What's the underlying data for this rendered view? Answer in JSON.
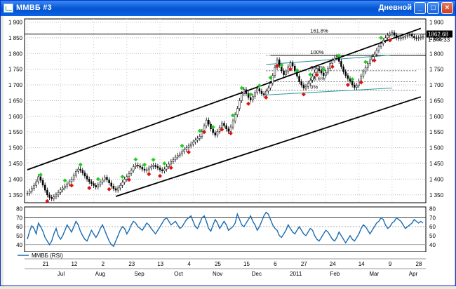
{
  "window": {
    "title": "ММВБ #3",
    "period": "Дневной",
    "minimize_icon": "minimize-icon",
    "maximize_icon": "maximize-icon",
    "close_icon": "close-icon",
    "minimize_glyph": "_",
    "maximize_glyph": "□",
    "close_glyph": "×"
  },
  "colors": {
    "accent": "#0a5ad8",
    "rsi_line": "#1a6bb0",
    "up_marker": "#22cc22",
    "down_marker": "#dd1111",
    "fib_line": "#2a9a9a"
  },
  "chart_data": [
    {
      "type": "candlestick",
      "ylim": [
        1325,
        1910
      ],
      "y_ticks": [
        "1 900",
        "1 850",
        "1 800",
        "1 750",
        "1 700",
        "1 650",
        "1 600",
        "1 550",
        "1 500",
        "1 450",
        "1 400",
        "1 350"
      ],
      "price_labels": [
        "1862.68",
        "1 844.33"
      ],
      "fib_labels": [
        "161.8%",
        "100%",
        "38.2%",
        "28.6%",
        "0%"
      ],
      "horizontal_levels": [
        1862,
        1794
      ],
      "grid": "dotted",
      "x_values": [
        0,
        1,
        2,
        3,
        4,
        5,
        6,
        7,
        8,
        9,
        10,
        11,
        12,
        13,
        14,
        15,
        16,
        17,
        18,
        19,
        20,
        21,
        22,
        23,
        24,
        25,
        26,
        27,
        28,
        29,
        30,
        31,
        32,
        33,
        34,
        35,
        36,
        37,
        38,
        39,
        40,
        41,
        42,
        43,
        44,
        45,
        46,
        47,
        48,
        49,
        50,
        51,
        52,
        53,
        54,
        55,
        56,
        57,
        58,
        59,
        60,
        61,
        62,
        63,
        64,
        65,
        66,
        67,
        68,
        69,
        70,
        71,
        72,
        73,
        74,
        75,
        76,
        77,
        78,
        79,
        80,
        81,
        82,
        83,
        84,
        85,
        86,
        87,
        88,
        89,
        90,
        91,
        92,
        93,
        94,
        95,
        96,
        97,
        98,
        99,
        100,
        101,
        102,
        103,
        104,
        105,
        106,
        107,
        108,
        109,
        110,
        111,
        112,
        113,
        114,
        115,
        116,
        117,
        118,
        119,
        120,
        121,
        122,
        123,
        124,
        125,
        126,
        127,
        128,
        129,
        130,
        131,
        132,
        133,
        134,
        135,
        136,
        137,
        138,
        139,
        140,
        141,
        142,
        143,
        144,
        145,
        146,
        147,
        148,
        149,
        150,
        151,
        152,
        153,
        154,
        155,
        156,
        157,
        158,
        159,
        160,
        161,
        162,
        163,
        164,
        165,
        166,
        167,
        168,
        169,
        170,
        171,
        172,
        173,
        174,
        175,
        176,
        177,
        178,
        179
      ],
      "close_values": [
        1355,
        1362,
        1371,
        1380,
        1392,
        1408,
        1396,
        1381,
        1365,
        1350,
        1342,
        1338,
        1344,
        1350,
        1358,
        1366,
        1372,
        1378,
        1385,
        1392,
        1400,
        1412,
        1425,
        1432,
        1428,
        1420,
        1410,
        1400,
        1392,
        1386,
        1380,
        1375,
        1382,
        1390,
        1398,
        1406,
        1398,
        1388,
        1378,
        1370,
        1365,
        1372,
        1380,
        1390,
        1400,
        1408,
        1418,
        1428,
        1440,
        1445,
        1442,
        1438,
        1432,
        1428,
        1430,
        1436,
        1440,
        1444,
        1440,
        1436,
        1430,
        1426,
        1432,
        1440,
        1448,
        1456,
        1462,
        1470,
        1476,
        1480,
        1488,
        1494,
        1500,
        1506,
        1512,
        1518,
        1524,
        1530,
        1536,
        1552,
        1570,
        1588,
        1575,
        1560,
        1548,
        1540,
        1552,
        1565,
        1578,
        1570,
        1560,
        1552,
        1566,
        1585,
        1605,
        1625,
        1650,
        1672,
        1685,
        1672,
        1660,
        1652,
        1664,
        1676,
        1688,
        1680,
        1672,
        1668,
        1680,
        1690,
        1705,
        1730,
        1755,
        1780,
        1762,
        1745,
        1732,
        1742,
        1758,
        1770,
        1760,
        1745,
        1728,
        1710,
        1700,
        1690,
        1695,
        1705,
        1715,
        1728,
        1740,
        1752,
        1745,
        1738,
        1730,
        1740,
        1752,
        1768,
        1778,
        1785,
        1790,
        1775,
        1758,
        1742,
        1730,
        1720,
        1712,
        1700,
        1692,
        1698,
        1712,
        1728,
        1742,
        1755,
        1768,
        1780,
        1790,
        1798,
        1810,
        1822,
        1832,
        1842,
        1850,
        1858,
        1862,
        1866,
        1858,
        1850,
        1848,
        1850,
        1852,
        1856,
        1858,
        1860,
        1855,
        1850,
        1848,
        1850,
        1852,
        1855
      ],
      "up_markers_x": [
        6,
        17,
        24,
        32,
        43,
        49,
        53,
        57,
        62,
        70,
        78,
        84,
        93,
        97,
        101,
        105,
        110,
        115,
        122,
        128,
        134,
        141,
        147,
        153,
        160
      ],
      "down_markers_x": [
        9,
        20,
        28,
        37,
        46,
        55,
        60,
        65,
        73,
        80,
        88,
        92,
        100,
        108,
        113,
        119,
        125,
        131,
        138,
        145,
        151,
        157,
        164
      ],
      "channel_top": [
        [
          0,
          1430
        ],
        [
          178,
          1880
        ]
      ],
      "channel_bottom": [
        [
          40,
          1345
        ],
        [
          178,
          1662
        ]
      ]
    },
    {
      "type": "line",
      "series_label": "ММВБ (RSI)",
      "ylim": [
        32,
        82
      ],
      "y_ticks": [
        "80",
        "70",
        "60",
        "50",
        "40"
      ],
      "levels": [
        70,
        60,
        40
      ],
      "x_values": [
        0,
        1,
        2,
        3,
        4,
        5,
        6,
        7,
        8,
        9,
        10,
        11,
        12,
        13,
        14,
        15,
        16,
        17,
        18,
        19,
        20,
        21,
        22,
        23,
        24,
        25,
        26,
        27,
        28,
        29,
        30,
        31,
        32,
        33,
        34,
        35,
        36,
        37,
        38,
        39,
        40,
        41,
        42,
        43,
        44,
        45,
        46,
        47,
        48,
        49,
        50,
        51,
        52,
        53,
        54,
        55,
        56,
        57,
        58,
        59,
        60,
        61,
        62,
        63,
        64,
        65,
        66,
        67,
        68,
        69,
        70,
        71,
        72,
        73,
        74,
        75,
        76,
        77,
        78,
        79,
        80,
        81,
        82,
        83,
        84,
        85,
        86,
        87,
        88,
        89,
        90,
        91,
        92,
        93,
        94,
        95,
        96,
        97,
        98,
        99,
        100,
        101,
        102,
        103,
        104,
        105,
        106,
        107,
        108,
        109,
        110,
        111,
        112,
        113,
        114,
        115,
        116,
        117,
        118,
        119,
        120,
        121,
        122,
        123,
        124,
        125,
        126,
        127,
        128,
        129,
        130,
        131,
        132,
        133,
        134,
        135,
        136,
        137,
        138,
        139,
        140,
        141,
        142,
        143,
        144,
        145,
        146,
        147,
        148,
        149,
        150,
        151,
        152,
        153,
        154,
        155,
        156,
        157,
        158,
        159,
        160,
        161,
        162,
        163,
        164,
        165,
        166,
        167,
        168,
        169,
        170,
        171,
        172,
        173,
        174,
        175,
        176,
        177,
        178,
        179
      ],
      "values": [
        46,
        55,
        61,
        58,
        52,
        64,
        60,
        55,
        48,
        44,
        40,
        44,
        52,
        58,
        50,
        46,
        50,
        56,
        62,
        58,
        54,
        60,
        66,
        62,
        55,
        50,
        46,
        44,
        50,
        56,
        52,
        48,
        52,
        58,
        62,
        56,
        50,
        44,
        40,
        38,
        44,
        50,
        56,
        60,
        58,
        52,
        56,
        62,
        66,
        64,
        60,
        58,
        56,
        60,
        64,
        62,
        58,
        55,
        52,
        56,
        60,
        64,
        68,
        70,
        66,
        62,
        64,
        66,
        62,
        58,
        60,
        64,
        68,
        70,
        72,
        66,
        60,
        58,
        64,
        70,
        72,
        66,
        58,
        55,
        62,
        68,
        64,
        58,
        62,
        66,
        62,
        56,
        58,
        60,
        64,
        74,
        68,
        62,
        60,
        64,
        68,
        72,
        66,
        62,
        56,
        60,
        66,
        72,
        76,
        74,
        68,
        62,
        58,
        56,
        50,
        48,
        52,
        56,
        62,
        58,
        54,
        52,
        56,
        60,
        56,
        52,
        50,
        54,
        58,
        56,
        50,
        46,
        44,
        48,
        52,
        56,
        54,
        50,
        46,
        44,
        48,
        54,
        50,
        46,
        42,
        46,
        50,
        46,
        44,
        48,
        52,
        58,
        62,
        60,
        56,
        52,
        56,
        60,
        64,
        66,
        70,
        68,
        62,
        58,
        60,
        64,
        66,
        70,
        68,
        66,
        62,
        58,
        60,
        62,
        64,
        68,
        66,
        64,
        66,
        64
      ]
    }
  ],
  "x_axis": {
    "top_row": [
      "21",
      "12",
      "2",
      "23",
      "13",
      "4",
      "25",
      "15",
      "6",
      "27",
      "24",
      "14",
      "9",
      "28"
    ],
    "bottom_row": [
      "Jul",
      "Aug",
      "Sep",
      "Oct",
      "Nov",
      "Dec",
      "2011",
      "Feb",
      "Mar",
      "Apr"
    ]
  }
}
